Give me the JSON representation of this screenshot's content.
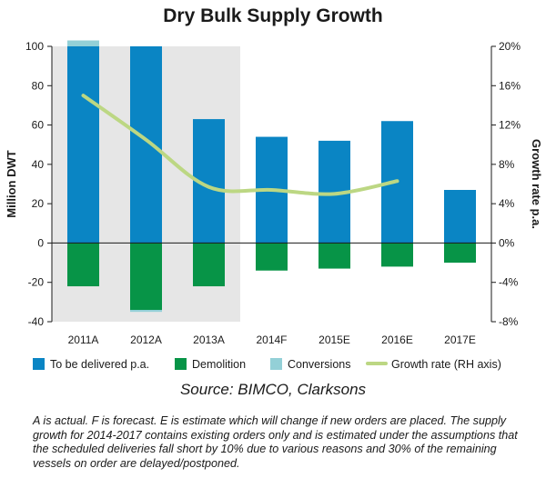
{
  "chart_data": {
    "type": "bar",
    "title": "Dry Bulk Supply Growth",
    "categories": [
      "2011A",
      "2012A",
      "2013A",
      "2014F",
      "2015E",
      "2016E",
      "2017E"
    ],
    "actual_categories": [
      "2011A",
      "2012A",
      "2013A"
    ],
    "ylabel": "Million DWT",
    "y2label": "Growth rate p.a.",
    "ylim": [
      -40,
      100
    ],
    "yticks": [
      "-40",
      "-20",
      "0",
      "20",
      "40",
      "60",
      "80",
      "100"
    ],
    "y2lim": [
      -8,
      20
    ],
    "y2ticks": [
      "-8%",
      "-4%",
      "0%",
      "4%",
      "8%",
      "12%",
      "16%",
      "20%"
    ],
    "grid": false,
    "legend": "bottom",
    "series": [
      {
        "name": "To be delivered p.a.",
        "kind": "bar",
        "color": "#0a85c4",
        "values": [
          100,
          100,
          63,
          54,
          52,
          62,
          27
        ]
      },
      {
        "name": "Demolition",
        "kind": "bar",
        "color": "#079447",
        "values": [
          -22,
          -34,
          -22,
          -14,
          -13,
          -12,
          -10
        ]
      },
      {
        "name": "Conversions",
        "kind": "bar",
        "color": "#93d0d7",
        "values": [
          3,
          0,
          0,
          0,
          0,
          0,
          0
        ],
        "negative_values": [
          0,
          -1,
          0,
          0,
          0,
          0,
          0
        ]
      },
      {
        "name": "Growth rate (RH axis)",
        "kind": "line",
        "axis": "right",
        "color": "#bcd783",
        "values": [
          15,
          10.5,
          5.7,
          5.4,
          5.0,
          6.3,
          null
        ]
      }
    ]
  },
  "source": "Source: BIMCO, Clarksons",
  "note": "A is actual. F is forecast. E is estimate which will change if new orders are placed. The supply growth for 2014-2017 contains existing orders only and is estimated under the assumptions that the scheduled deliveries fall short by 10% due to various reasons and 30% of the remaining vessels on order are delayed/postponed."
}
